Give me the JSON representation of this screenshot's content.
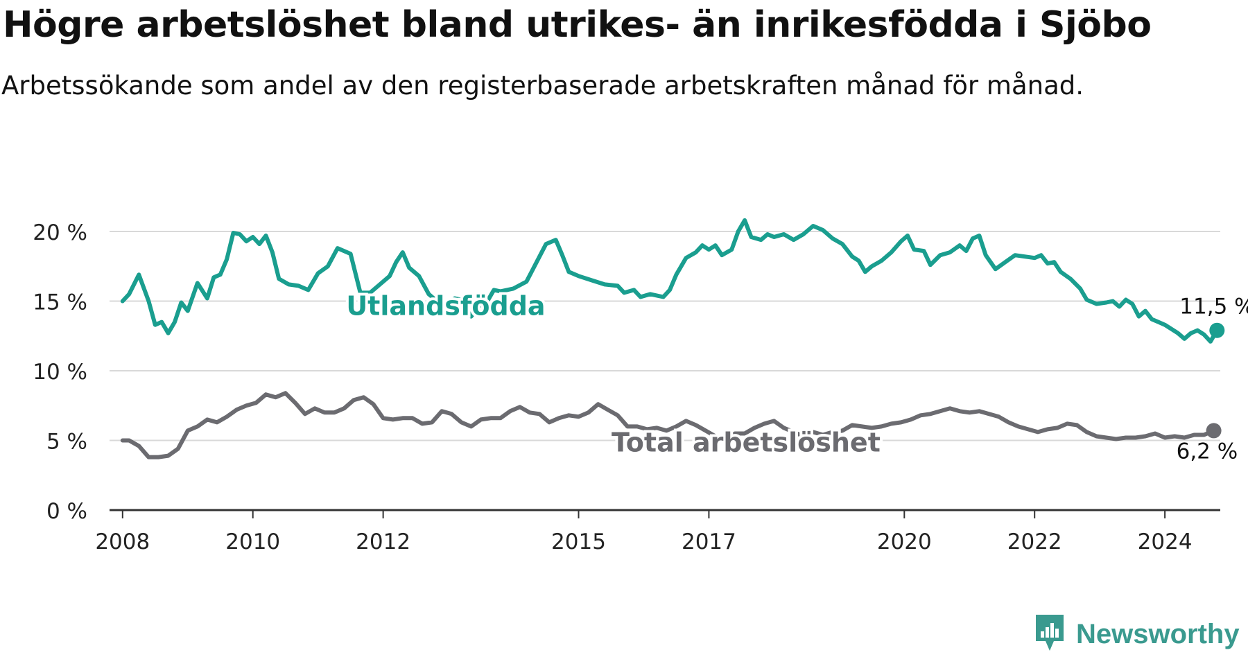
{
  "title": "Högre arbetslöshet bland utrikes- än inrikesfödda i Sjöbo",
  "subtitle": "Arbetssökande som andel av den registerbaserade arbetskraften månad för månad.",
  "brand": {
    "name": "Newsworthy",
    "icon": "newsworthy-logo-icon",
    "color": "#3a9a8f"
  },
  "chart_data": {
    "type": "line",
    "x_range": [
      2007.8,
      2024.85
    ],
    "ylim": [
      0,
      20
    ],
    "y_ticks": [
      0,
      5,
      10,
      15,
      20
    ],
    "y_tick_labels": [
      "0 %",
      "5 %",
      "10 %",
      "15 %",
      "20 %"
    ],
    "x_ticks": [
      2008,
      2010,
      2012,
      2015,
      2017,
      2020,
      2022,
      2024
    ],
    "x_tick_labels": [
      "2008",
      "2010",
      "2012",
      "2015",
      "2017",
      "2020",
      "2022",
      "2024"
    ],
    "grid": true,
    "series": [
      {
        "name": "Utlandsfödda",
        "color": "#1a9e8f",
        "end_label": "11,5 %",
        "points": [
          [
            2008.0,
            15.0
          ],
          [
            2008.1,
            15.5
          ],
          [
            2008.25,
            16.9
          ],
          [
            2008.4,
            15.0
          ],
          [
            2008.5,
            13.3
          ],
          [
            2008.6,
            13.5
          ],
          [
            2008.7,
            12.7
          ],
          [
            2008.8,
            13.5
          ],
          [
            2008.9,
            14.9
          ],
          [
            2009.0,
            14.3
          ],
          [
            2009.15,
            16.3
          ],
          [
            2009.3,
            15.2
          ],
          [
            2009.4,
            16.7
          ],
          [
            2009.5,
            16.9
          ],
          [
            2009.6,
            18.0
          ],
          [
            2009.7,
            19.9
          ],
          [
            2009.8,
            19.8
          ],
          [
            2009.9,
            19.3
          ],
          [
            2010.0,
            19.6
          ],
          [
            2010.1,
            19.1
          ],
          [
            2010.2,
            19.7
          ],
          [
            2010.3,
            18.5
          ],
          [
            2010.4,
            16.6
          ],
          [
            2010.55,
            16.2
          ],
          [
            2010.7,
            16.1
          ],
          [
            2010.85,
            15.8
          ],
          [
            2011.0,
            17.0
          ],
          [
            2011.15,
            17.5
          ],
          [
            2011.3,
            18.8
          ],
          [
            2011.5,
            18.4
          ],
          [
            2011.65,
            15.6
          ],
          [
            2011.8,
            15.6
          ],
          [
            2011.95,
            16.2
          ],
          [
            2012.1,
            16.8
          ],
          [
            2012.2,
            17.8
          ],
          [
            2012.3,
            18.5
          ],
          [
            2012.4,
            17.4
          ],
          [
            2012.55,
            16.8
          ],
          [
            2012.7,
            15.5
          ],
          [
            2012.85,
            14.9
          ],
          [
            2013.0,
            14.9
          ],
          [
            2013.1,
            15.2
          ],
          [
            2013.2,
            15.1
          ],
          [
            2013.35,
            13.9
          ],
          [
            2013.5,
            14.8
          ],
          [
            2013.6,
            15.0
          ],
          [
            2013.7,
            15.8
          ],
          [
            2013.8,
            15.7
          ],
          [
            2014.0,
            15.9
          ],
          [
            2014.2,
            16.4
          ],
          [
            2014.5,
            19.1
          ],
          [
            2014.65,
            19.4
          ],
          [
            2014.75,
            18.3
          ],
          [
            2014.85,
            17.1
          ],
          [
            2015.0,
            16.8
          ],
          [
            2015.2,
            16.5
          ],
          [
            2015.4,
            16.2
          ],
          [
            2015.6,
            16.1
          ],
          [
            2015.7,
            15.6
          ],
          [
            2015.85,
            15.8
          ],
          [
            2015.95,
            15.3
          ],
          [
            2016.1,
            15.5
          ],
          [
            2016.3,
            15.3
          ],
          [
            2016.4,
            15.8
          ],
          [
            2016.5,
            16.9
          ],
          [
            2016.65,
            18.1
          ],
          [
            2016.8,
            18.5
          ],
          [
            2016.9,
            19.0
          ],
          [
            2017.0,
            18.7
          ],
          [
            2017.1,
            19.0
          ],
          [
            2017.2,
            18.3
          ],
          [
            2017.35,
            18.7
          ],
          [
            2017.45,
            20.0
          ],
          [
            2017.55,
            20.8
          ],
          [
            2017.65,
            19.6
          ],
          [
            2017.8,
            19.4
          ],
          [
            2017.9,
            19.8
          ],
          [
            2018.0,
            19.6
          ],
          [
            2018.15,
            19.8
          ],
          [
            2018.3,
            19.4
          ],
          [
            2018.45,
            19.8
          ],
          [
            2018.6,
            20.4
          ],
          [
            2018.75,
            20.1
          ],
          [
            2018.9,
            19.5
          ],
          [
            2019.05,
            19.1
          ],
          [
            2019.2,
            18.2
          ],
          [
            2019.3,
            17.9
          ],
          [
            2019.4,
            17.1
          ],
          [
            2019.5,
            17.5
          ],
          [
            2019.65,
            17.9
          ],
          [
            2019.8,
            18.5
          ],
          [
            2019.95,
            19.3
          ],
          [
            2020.05,
            19.7
          ],
          [
            2020.15,
            18.7
          ],
          [
            2020.3,
            18.6
          ],
          [
            2020.4,
            17.6
          ],
          [
            2020.55,
            18.3
          ],
          [
            2020.7,
            18.5
          ],
          [
            2020.85,
            19.0
          ],
          [
            2020.95,
            18.6
          ],
          [
            2021.05,
            19.5
          ],
          [
            2021.15,
            19.7
          ],
          [
            2021.25,
            18.3
          ],
          [
            2021.4,
            17.3
          ],
          [
            2021.55,
            17.8
          ],
          [
            2021.7,
            18.3
          ],
          [
            2021.85,
            18.2
          ],
          [
            2022.0,
            18.1
          ],
          [
            2022.1,
            18.3
          ],
          [
            2022.2,
            17.7
          ],
          [
            2022.3,
            17.8
          ],
          [
            2022.4,
            17.1
          ],
          [
            2022.55,
            16.6
          ],
          [
            2022.7,
            15.9
          ],
          [
            2022.8,
            15.1
          ],
          [
            2022.95,
            14.8
          ],
          [
            2023.1,
            14.9
          ],
          [
            2023.2,
            15.0
          ],
          [
            2023.3,
            14.6
          ],
          [
            2023.4,
            15.1
          ],
          [
            2023.5,
            14.8
          ],
          [
            2023.6,
            13.9
          ],
          [
            2023.7,
            14.3
          ],
          [
            2023.8,
            13.7
          ],
          [
            2023.9,
            13.5
          ],
          [
            2024.0,
            13.3
          ],
          [
            2024.1,
            13.0
          ],
          [
            2024.2,
            12.7
          ],
          [
            2024.3,
            12.3
          ],
          [
            2024.4,
            12.7
          ],
          [
            2024.5,
            12.9
          ],
          [
            2024.6,
            12.6
          ],
          [
            2024.7,
            12.1
          ],
          [
            2024.8,
            12.9
          ],
          [
            2024.9,
            11.8
          ],
          [
            2025.0,
            11.5
          ]
        ]
      },
      {
        "name": "Total arbetslöshet",
        "color": "#6b6b70",
        "end_label": "6,2 %",
        "points": [
          [
            2008.0,
            5.0
          ],
          [
            2008.1,
            5.0
          ],
          [
            2008.25,
            4.6
          ],
          [
            2008.4,
            3.8
          ],
          [
            2008.55,
            3.8
          ],
          [
            2008.7,
            3.9
          ],
          [
            2008.85,
            4.4
          ],
          [
            2009.0,
            5.7
          ],
          [
            2009.15,
            6.0
          ],
          [
            2009.3,
            6.5
          ],
          [
            2009.45,
            6.3
          ],
          [
            2009.6,
            6.7
          ],
          [
            2009.75,
            7.2
          ],
          [
            2009.9,
            7.5
          ],
          [
            2010.05,
            7.7
          ],
          [
            2010.2,
            8.3
          ],
          [
            2010.35,
            8.1
          ],
          [
            2010.5,
            8.4
          ],
          [
            2010.65,
            7.7
          ],
          [
            2010.8,
            6.9
          ],
          [
            2010.95,
            7.3
          ],
          [
            2011.1,
            7.0
          ],
          [
            2011.25,
            7.0
          ],
          [
            2011.4,
            7.3
          ],
          [
            2011.55,
            7.9
          ],
          [
            2011.7,
            8.1
          ],
          [
            2011.85,
            7.6
          ],
          [
            2012.0,
            6.6
          ],
          [
            2012.15,
            6.5
          ],
          [
            2012.3,
            6.6
          ],
          [
            2012.45,
            6.6
          ],
          [
            2012.6,
            6.2
          ],
          [
            2012.75,
            6.3
          ],
          [
            2012.9,
            7.1
          ],
          [
            2013.05,
            6.9
          ],
          [
            2013.2,
            6.3
          ],
          [
            2013.35,
            6.0
          ],
          [
            2013.5,
            6.5
          ],
          [
            2013.65,
            6.6
          ],
          [
            2013.8,
            6.6
          ],
          [
            2013.95,
            7.1
          ],
          [
            2014.1,
            7.4
          ],
          [
            2014.25,
            7.0
          ],
          [
            2014.4,
            6.9
          ],
          [
            2014.55,
            6.3
          ],
          [
            2014.7,
            6.6
          ],
          [
            2014.85,
            6.8
          ],
          [
            2015.0,
            6.7
          ],
          [
            2015.15,
            7.0
          ],
          [
            2015.3,
            7.6
          ],
          [
            2015.45,
            7.2
          ],
          [
            2015.6,
            6.8
          ],
          [
            2015.75,
            6.0
          ],
          [
            2015.9,
            6.0
          ],
          [
            2016.05,
            5.8
          ],
          [
            2016.2,
            5.9
          ],
          [
            2016.35,
            5.7
          ],
          [
            2016.5,
            6.0
          ],
          [
            2016.65,
            6.4
          ],
          [
            2016.8,
            6.1
          ],
          [
            2016.95,
            5.7
          ],
          [
            2017.1,
            5.3
          ],
          [
            2017.25,
            5.1
          ],
          [
            2017.4,
            5.5
          ],
          [
            2017.55,
            5.5
          ],
          [
            2017.7,
            5.9
          ],
          [
            2017.85,
            6.2
          ],
          [
            2018.0,
            6.4
          ],
          [
            2018.15,
            5.9
          ],
          [
            2018.3,
            5.6
          ],
          [
            2018.45,
            5.3
          ],
          [
            2018.6,
            5.6
          ],
          [
            2018.75,
            5.4
          ],
          [
            2018.9,
            5.6
          ],
          [
            2019.05,
            5.7
          ],
          [
            2019.2,
            6.1
          ],
          [
            2019.35,
            6.0
          ],
          [
            2019.5,
            5.9
          ],
          [
            2019.65,
            6.0
          ],
          [
            2019.8,
            6.2
          ],
          [
            2019.95,
            6.3
          ],
          [
            2020.1,
            6.5
          ],
          [
            2020.25,
            6.8
          ],
          [
            2020.4,
            6.9
          ],
          [
            2020.55,
            7.1
          ],
          [
            2020.7,
            7.3
          ],
          [
            2020.85,
            7.1
          ],
          [
            2021.0,
            7.0
          ],
          [
            2021.15,
            7.1
          ],
          [
            2021.3,
            6.9
          ],
          [
            2021.45,
            6.7
          ],
          [
            2021.6,
            6.3
          ],
          [
            2021.75,
            6.0
          ],
          [
            2021.9,
            5.8
          ],
          [
            2022.05,
            5.6
          ],
          [
            2022.2,
            5.8
          ],
          [
            2022.35,
            5.9
          ],
          [
            2022.5,
            6.2
          ],
          [
            2022.65,
            6.1
          ],
          [
            2022.8,
            5.6
          ],
          [
            2022.95,
            5.3
          ],
          [
            2023.1,
            5.2
          ],
          [
            2023.25,
            5.1
          ],
          [
            2023.4,
            5.2
          ],
          [
            2023.55,
            5.2
          ],
          [
            2023.7,
            5.3
          ],
          [
            2023.85,
            5.5
          ],
          [
            2024.0,
            5.2
          ],
          [
            2024.15,
            5.3
          ],
          [
            2024.3,
            5.2
          ],
          [
            2024.45,
            5.4
          ],
          [
            2024.6,
            5.4
          ],
          [
            2024.75,
            5.7
          ],
          [
            2024.9,
            6.3
          ],
          [
            2025.0,
            6.0
          ],
          [
            2025.15,
            5.7
          ],
          [
            2025.3,
            5.8
          ],
          [
            2025.45,
            6.0
          ],
          [
            2025.6,
            6.2
          ]
        ]
      }
    ]
  }
}
